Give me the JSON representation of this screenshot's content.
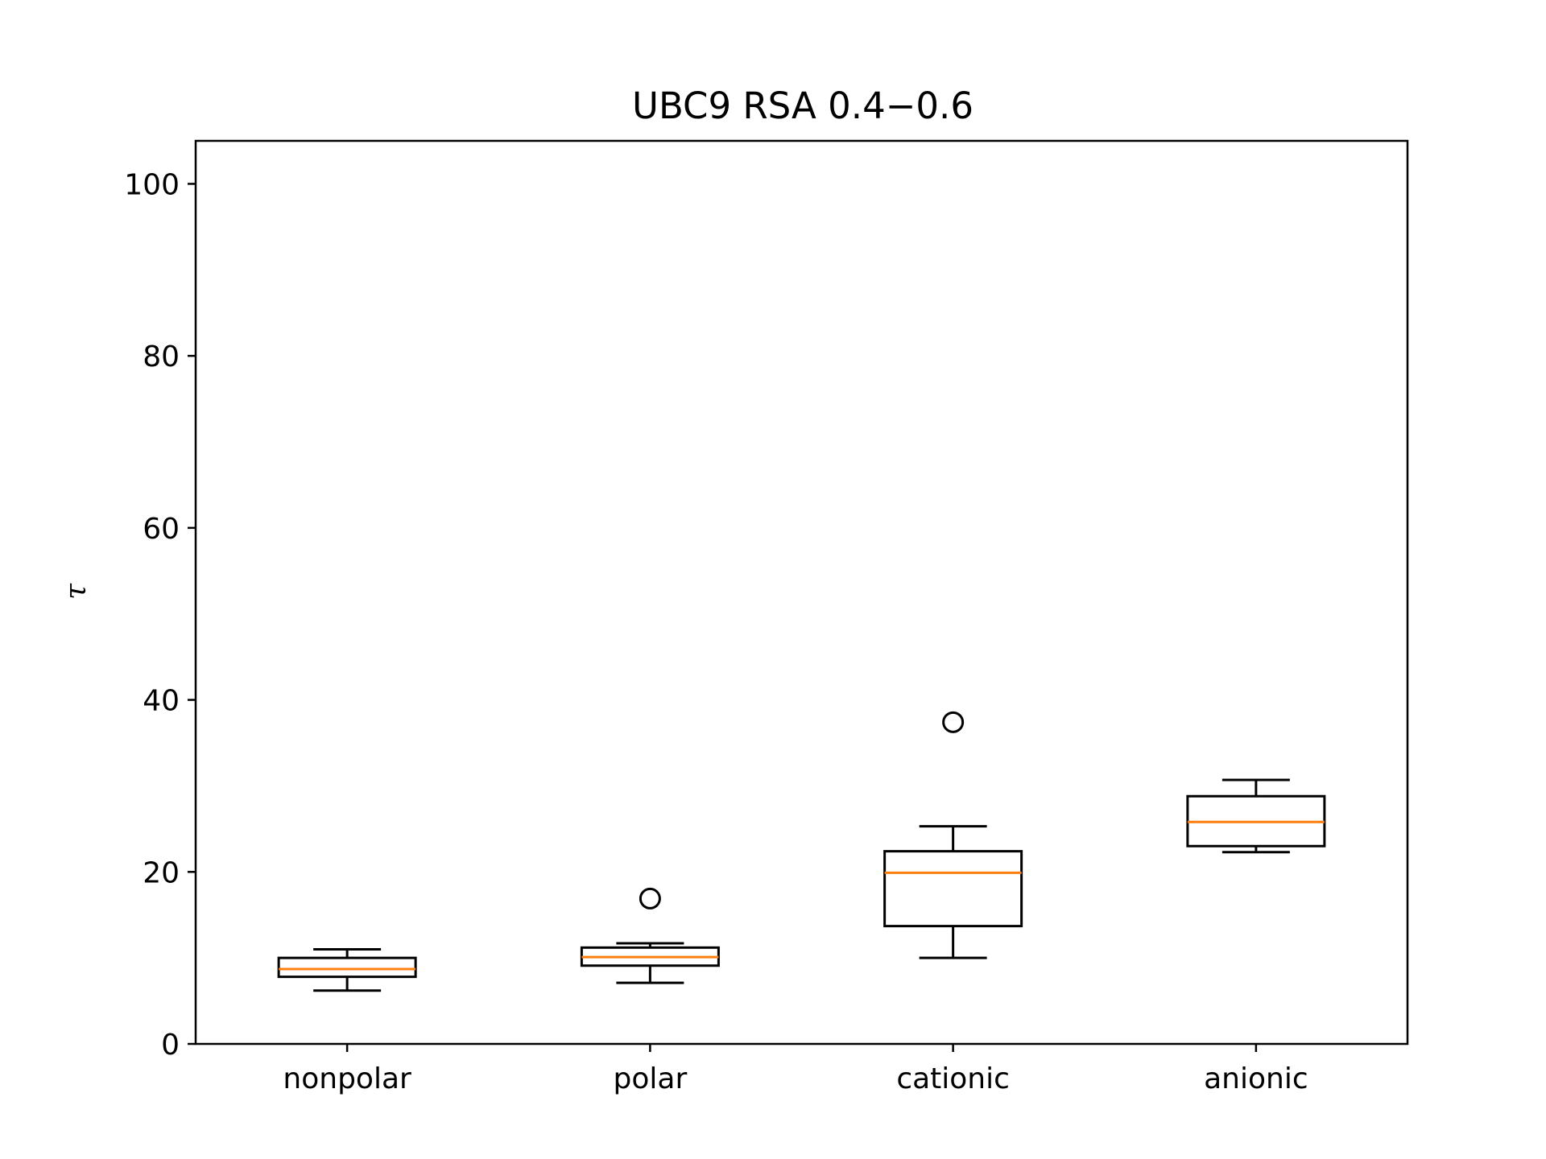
{
  "chart_data": {
    "type": "box",
    "title": "UBC9 RSA 0.4−0.6",
    "xlabel": "",
    "ylabel": "τ",
    "ylim": [
      0,
      105
    ],
    "yticks": [
      0,
      20,
      40,
      60,
      80,
      100
    ],
    "categories": [
      "nonpolar",
      "polar",
      "cationic",
      "anionic"
    ],
    "boxes": [
      {
        "whisker_low": 6.2,
        "q1": 7.8,
        "median": 8.7,
        "q3": 10.0,
        "whisker_high": 11.0,
        "outliers": []
      },
      {
        "whisker_low": 7.1,
        "q1": 9.1,
        "median": 10.1,
        "q3": 11.2,
        "whisker_high": 11.7,
        "outliers": [
          16.9
        ]
      },
      {
        "whisker_low": 10.0,
        "q1": 13.7,
        "median": 19.9,
        "q3": 22.4,
        "whisker_high": 25.3,
        "outliers": [
          37.4
        ]
      },
      {
        "whisker_low": 22.3,
        "q1": 23.0,
        "median": 25.8,
        "q3": 28.8,
        "whisker_high": 30.7,
        "outliers": []
      }
    ],
    "colors": {
      "box": "#000000",
      "median": "#ff7f0e",
      "axes": "#000000"
    },
    "grid": false
  }
}
